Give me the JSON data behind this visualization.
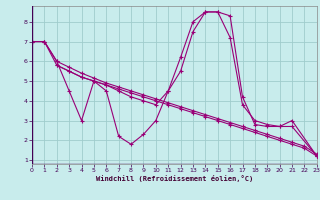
{
  "xlabel": "Windchill (Refroidissement éolien,°C)",
  "background_color": "#c8ecec",
  "grid_color": "#a0cccc",
  "line_color": "#990077",
  "xlim": [
    0,
    23
  ],
  "ylim": [
    0.8,
    8.8
  ],
  "xticks": [
    0,
    1,
    2,
    3,
    4,
    5,
    6,
    7,
    8,
    9,
    10,
    11,
    12,
    13,
    14,
    15,
    16,
    17,
    18,
    19,
    20,
    21,
    22,
    23
  ],
  "yticks": [
    1,
    2,
    3,
    4,
    5,
    6,
    7,
    8
  ],
  "lines": [
    {
      "x": [
        0,
        1,
        2,
        3,
        4,
        5,
        6,
        7,
        8,
        9,
        10,
        11,
        12,
        13,
        14,
        15,
        16,
        17,
        18,
        19,
        20,
        21,
        23
      ],
      "y": [
        7.0,
        7.0,
        6.0,
        4.5,
        3.0,
        5.0,
        4.5,
        2.2,
        1.8,
        2.3,
        3.0,
        4.5,
        6.2,
        8.0,
        8.5,
        8.5,
        7.2,
        3.8,
        3.0,
        2.8,
        2.7,
        3.0,
        1.2
      ]
    },
    {
      "x": [
        2,
        3,
        4,
        5,
        6,
        7,
        8,
        9,
        10,
        11,
        12,
        13,
        14,
        15,
        16,
        17,
        18,
        19,
        20,
        21,
        23
      ],
      "y": [
        5.8,
        5.5,
        5.2,
        5.0,
        4.8,
        4.5,
        4.2,
        4.0,
        3.8,
        4.5,
        5.5,
        7.5,
        8.5,
        8.5,
        8.3,
        4.2,
        2.8,
        2.7,
        2.7,
        2.7,
        1.2
      ]
    },
    {
      "x": [
        0,
        1,
        2,
        3,
        4,
        5,
        6,
        7,
        8,
        9,
        10,
        11,
        12,
        13,
        14,
        15,
        16,
        17,
        18,
        19,
        20,
        21,
        22,
        23
      ],
      "y": [
        7.0,
        7.0,
        6.0,
        5.7,
        5.4,
        5.15,
        4.9,
        4.7,
        4.5,
        4.3,
        4.1,
        3.9,
        3.7,
        3.5,
        3.3,
        3.1,
        2.9,
        2.7,
        2.5,
        2.3,
        2.1,
        1.9,
        1.7,
        1.3
      ]
    },
    {
      "x": [
        0,
        1,
        2,
        3,
        4,
        5,
        6,
        7,
        8,
        9,
        10,
        11,
        12,
        13,
        14,
        15,
        16,
        17,
        18,
        19,
        20,
        21,
        22,
        23
      ],
      "y": [
        7.0,
        7.0,
        5.8,
        5.5,
        5.2,
        5.0,
        4.8,
        4.6,
        4.4,
        4.2,
        4.0,
        3.8,
        3.6,
        3.4,
        3.2,
        3.0,
        2.8,
        2.6,
        2.4,
        2.2,
        2.0,
        1.8,
        1.6,
        1.2
      ]
    }
  ]
}
